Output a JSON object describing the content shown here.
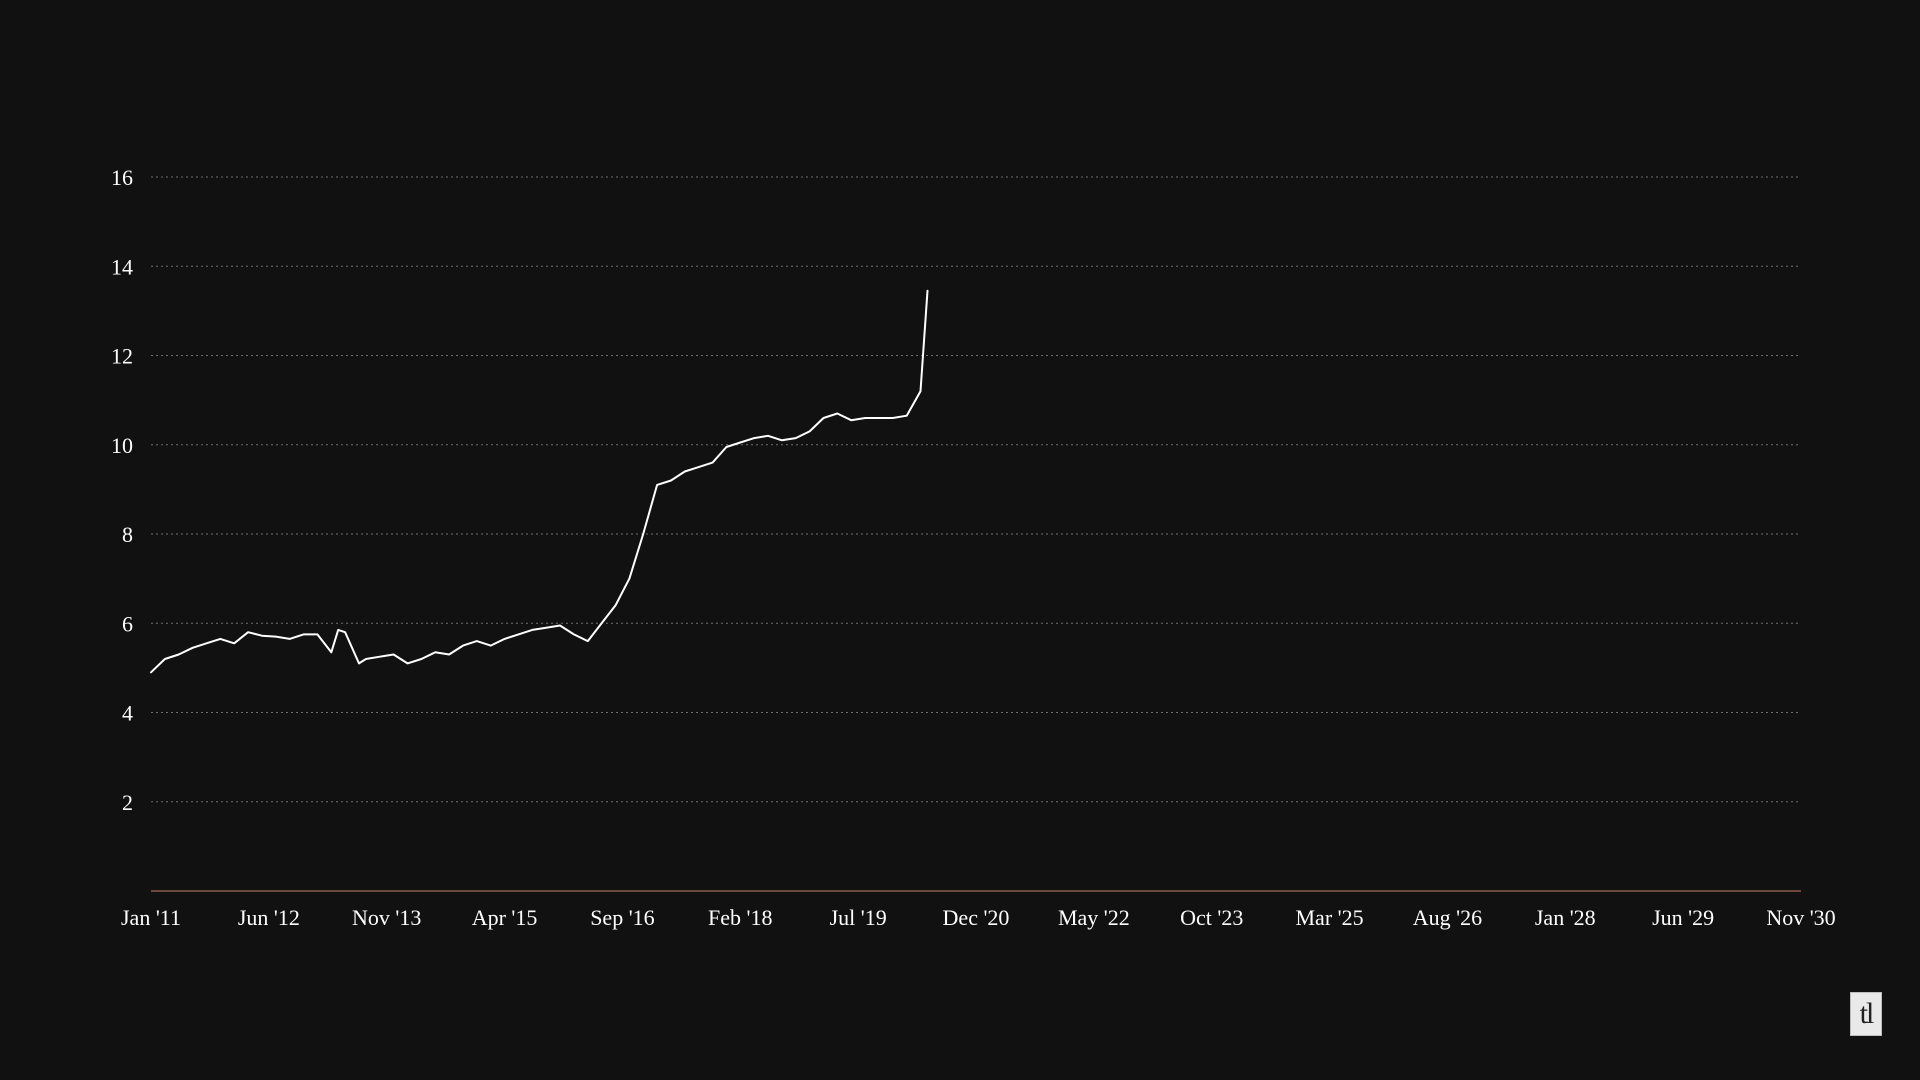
{
  "chart_data": {
    "type": "line",
    "title": "",
    "xlabel": "",
    "ylabel": "",
    "x_axis": {
      "type": "date",
      "range": [
        "2011-01",
        "2030-11"
      ],
      "ticks": [
        {
          "label": "Jan '11",
          "date": "2011-01"
        },
        {
          "label": "Jun '12",
          "date": "2012-06"
        },
        {
          "label": "Nov '13",
          "date": "2013-11"
        },
        {
          "label": "Apr '15",
          "date": "2015-04"
        },
        {
          "label": "Sep '16",
          "date": "2016-09"
        },
        {
          "label": "Feb '18",
          "date": "2018-02"
        },
        {
          "label": "Jul '19",
          "date": "2019-07"
        },
        {
          "label": "Dec '20",
          "date": "2020-12"
        },
        {
          "label": "May '22",
          "date": "2022-05"
        },
        {
          "label": "Oct '23",
          "date": "2023-10"
        },
        {
          "label": "Mar '25",
          "date": "2025-03"
        },
        {
          "label": "Aug '26",
          "date": "2026-08"
        },
        {
          "label": "Jan '28",
          "date": "2028-01"
        },
        {
          "label": "Jun '29",
          "date": "2029-06"
        },
        {
          "label": "Nov '30",
          "date": "2030-11"
        }
      ]
    },
    "y_axis": {
      "range": [
        0,
        16
      ],
      "ticks": [
        2,
        4,
        6,
        8,
        10,
        12,
        14,
        16
      ],
      "grid": true,
      "grid_style": "dotted"
    },
    "baseline_color": "#c87f6a",
    "grid_color": "#6f6f6f",
    "series": [
      {
        "color": "#ffffff",
        "x": [
          "2011-01",
          "2011-03",
          "2011-05",
          "2011-07",
          "2011-09",
          "2011-11",
          "2012-01",
          "2012-03",
          "2012-05",
          "2012-07",
          "2012-09",
          "2012-11",
          "2013-01",
          "2013-03",
          "2013-04",
          "2013-05",
          "2013-07",
          "2013-08",
          "2013-10",
          "2013-12",
          "2014-02",
          "2014-04",
          "2014-06",
          "2014-08",
          "2014-10",
          "2014-12",
          "2015-02",
          "2015-04",
          "2015-06",
          "2015-08",
          "2015-10",
          "2015-12",
          "2016-02",
          "2016-04",
          "2016-06",
          "2016-08",
          "2016-10",
          "2016-12",
          "2017-02",
          "2017-04",
          "2017-06",
          "2017-08",
          "2017-10",
          "2017-12",
          "2018-02",
          "2018-04",
          "2018-06",
          "2018-08",
          "2018-10",
          "2018-12",
          "2019-02",
          "2019-04",
          "2019-06",
          "2019-08",
          "2019-10",
          "2019-12",
          "2020-02",
          "2020-04",
          "2020-05"
        ],
        "values": [
          4.9,
          5.2,
          5.3,
          5.45,
          5.55,
          5.65,
          5.55,
          5.8,
          5.72,
          5.7,
          5.65,
          5.75,
          5.75,
          5.35,
          5.85,
          5.8,
          5.1,
          5.2,
          5.25,
          5.3,
          5.1,
          5.2,
          5.35,
          5.3,
          5.5,
          5.6,
          5.5,
          5.65,
          5.75,
          5.85,
          5.9,
          5.95,
          5.75,
          5.6,
          6.0,
          6.4,
          7.0,
          8.0,
          9.1,
          9.2,
          9.4,
          9.5,
          9.6,
          9.95,
          10.05,
          10.15,
          10.2,
          10.1,
          10.15,
          10.3,
          10.6,
          10.7,
          10.55,
          10.6,
          10.6,
          10.6,
          10.65,
          11.2,
          13.45
        ]
      }
    ]
  },
  "logo": {
    "text": "tl"
  }
}
